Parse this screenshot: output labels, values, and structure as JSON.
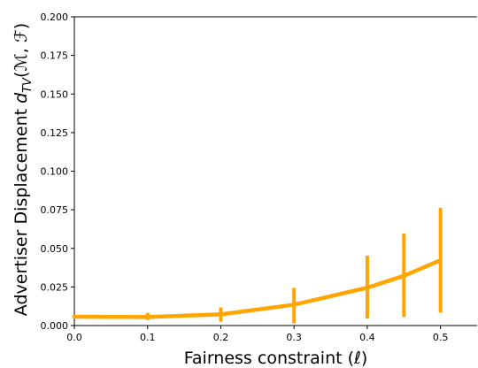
{
  "chart_data": {
    "type": "line",
    "xlabel": "Fairness constraint (ℓ)",
    "ylabel": "Advertiser Displacement d_TV(ℳ, ℱ)",
    "ylabel_main": "Advertiser Displacement ",
    "ylabel_math": "d",
    "ylabel_sub": "TV",
    "ylabel_args": "(ℳ, ℱ)",
    "xlim": [
      0.0,
      0.55
    ],
    "ylim": [
      0.0,
      0.2
    ],
    "x_ticks": [
      "0.0",
      "0.1",
      "0.2",
      "0.3",
      "0.4",
      "0.5"
    ],
    "x_tick_values": [
      0.0,
      0.1,
      0.2,
      0.3,
      0.4,
      0.5
    ],
    "y_ticks": [
      "0.000",
      "0.025",
      "0.050",
      "0.075",
      "0.100",
      "0.125",
      "0.150",
      "0.175",
      "0.200"
    ],
    "y_tick_values": [
      0.0,
      0.025,
      0.05,
      0.075,
      0.1,
      0.125,
      0.15,
      0.175,
      0.2
    ],
    "grid": false,
    "series": [
      {
        "color": "#FFA500",
        "x": [
          0.0,
          0.1,
          0.2,
          0.3,
          0.4,
          0.45,
          0.5
        ],
        "y": [
          0.0057,
          0.0055,
          0.0072,
          0.0135,
          0.0245,
          0.0322,
          0.0423
        ],
        "err_low": [
          0.0048,
          0.0035,
          0.0025,
          0.0015,
          0.0045,
          0.0055,
          0.0083
        ],
        "err_high": [
          0.0068,
          0.0082,
          0.0117,
          0.0244,
          0.0452,
          0.0596,
          0.0762
        ]
      }
    ]
  }
}
